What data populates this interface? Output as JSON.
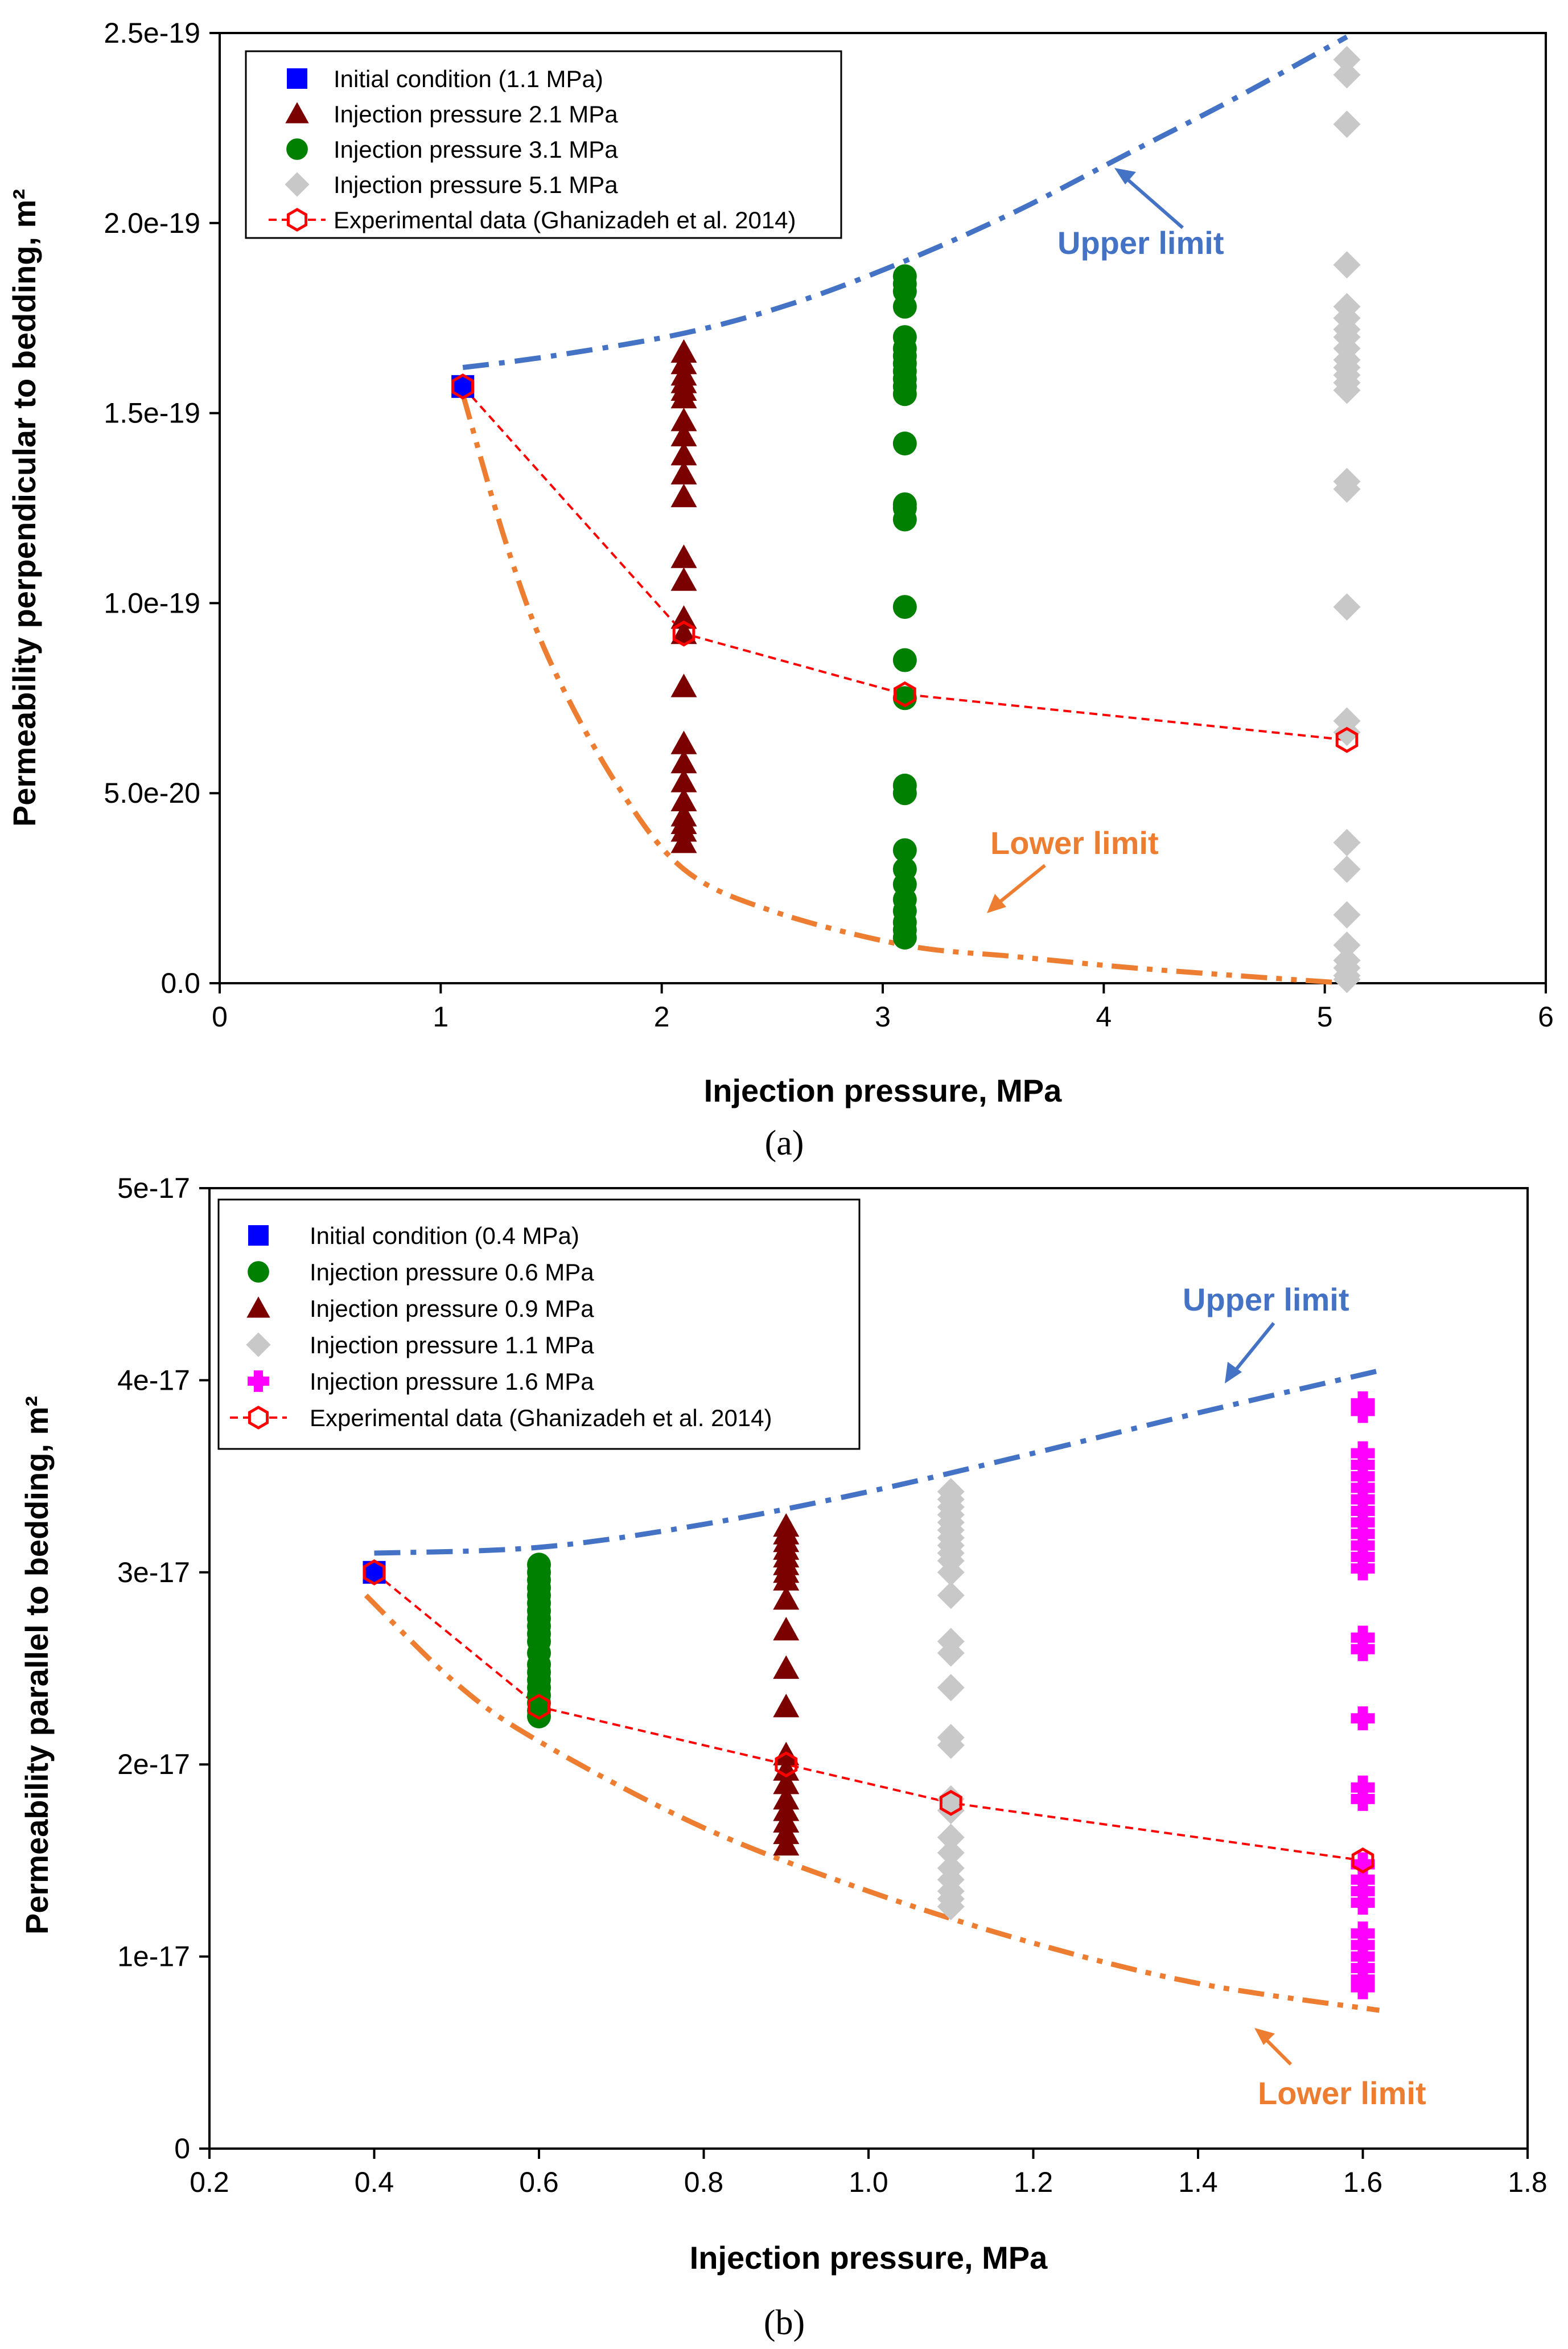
{
  "chart_data": [
    {
      "type": "scatter",
      "panel_label": "(a)",
      "xlabel": "Injection pressure, MPa",
      "ylabel": "Permeability perpendicular to bedding, m²",
      "xlim": [
        0,
        6
      ],
      "ylim": [
        0,
        2.5e-19
      ],
      "xticks": [
        0,
        1,
        2,
        3,
        4,
        5,
        6
      ],
      "xtick_labels": [
        "0",
        "1",
        "2",
        "3",
        "4",
        "5",
        "6"
      ],
      "yticks": [
        0,
        5e-20,
        1e-19,
        1.5e-19,
        2e-19,
        2.5e-19
      ],
      "ytick_labels": [
        "0.0",
        "5.0e-20",
        "1.0e-19",
        "1.5e-19",
        "2.0e-19",
        "2.5e-19"
      ],
      "grid": false,
      "legend_position": "top-left",
      "series": [
        {
          "name": "Initial condition (1.1 MPa)",
          "marker": "square",
          "color": "#0000ff",
          "x": [
            1.1
          ],
          "y": [
            1.57e-19
          ]
        },
        {
          "name": "Injection pressure 2.1 MPa",
          "marker": "triangle",
          "color": "#7b0000",
          "x": [
            2.1,
            2.1,
            2.1,
            2.1,
            2.1,
            2.1,
            2.1,
            2.1,
            2.1,
            2.1,
            2.1,
            2.1,
            2.1,
            2.1,
            2.1,
            2.1,
            2.1,
            2.1,
            2.1,
            2.1,
            2.1,
            2.1,
            2.1,
            2.1
          ],
          "y": [
            1.66e-19,
            1.63e-19,
            1.6e-19,
            1.58e-19,
            1.56e-19,
            1.54e-19,
            1.48e-19,
            1.44e-19,
            1.39e-19,
            1.34e-19,
            1.28e-19,
            1.12e-19,
            1.06e-19,
            9.6e-20,
            9.2e-20,
            7.8e-20,
            6.3e-20,
            5.8e-20,
            5.3e-20,
            4.8e-20,
            4.4e-20,
            4.2e-20,
            4e-20,
            3.7e-20
          ]
        },
        {
          "name": "Injection pressure 3.1 MPa",
          "marker": "circle",
          "color": "#008000",
          "x": [
            3.1,
            3.1,
            3.1,
            3.1,
            3.1,
            3.1,
            3.1,
            3.1,
            3.1,
            3.1,
            3.1,
            3.1,
            3.1,
            3.1,
            3.1,
            3.1,
            3.1,
            3.1,
            3.1,
            3.1,
            3.1,
            3.1,
            3.1,
            3.1,
            3.1,
            3.1,
            3.1,
            3.1,
            3.1
          ],
          "y": [
            1.86e-19,
            1.84e-19,
            1.82e-19,
            1.78e-19,
            1.7e-19,
            1.67e-19,
            1.65e-19,
            1.63e-19,
            1.61e-19,
            1.59e-19,
            1.57e-19,
            1.55e-19,
            1.42e-19,
            1.26e-19,
            1.25e-19,
            1.22e-19,
            9.9e-20,
            8.5e-20,
            7.5e-20,
            5.2e-20,
            5e-20,
            3.5e-20,
            3e-20,
            2.6e-20,
            2.2e-20,
            1.9e-20,
            1.6e-20,
            1.4e-20,
            1.2e-20
          ]
        },
        {
          "name": "Injection pressure 5.1 MPa",
          "marker": "diamond",
          "color": "#c8c8c8",
          "x": [
            5.1,
            5.1,
            5.1,
            5.1,
            5.1,
            5.1,
            5.1,
            5.1,
            5.1,
            5.1,
            5.1,
            5.1,
            5.1,
            5.1,
            5.1,
            5.1,
            5.1,
            5.1,
            5.1,
            5.1,
            5.1,
            5.1,
            5.1,
            5.1,
            5.1,
            5.1,
            5.1
          ],
          "y": [
            2.43e-19,
            2.39e-19,
            2.26e-19,
            1.89e-19,
            1.78e-19,
            1.75e-19,
            1.72e-19,
            1.7e-19,
            1.67e-19,
            1.64e-19,
            1.62e-19,
            1.6e-19,
            1.58e-19,
            1.56e-19,
            1.32e-19,
            1.3e-19,
            9.9e-20,
            6.9e-20,
            6.6e-20,
            3.7e-20,
            3e-20,
            1.8e-20,
            1e-20,
            6e-21,
            4e-21,
            2e-21,
            1e-21
          ]
        },
        {
          "name": "Experimental data (Ghanizadeh et al. 2014)",
          "marker": "hexagon-open",
          "line": "dashed",
          "color": "#ff0000",
          "x": [
            1.1,
            2.1,
            3.1,
            5.1
          ],
          "y": [
            1.57e-19,
            9.2e-20,
            7.6e-20,
            6.4e-20
          ]
        }
      ],
      "limit_curves": [
        {
          "label": "Upper limit",
          "color": "#4472c4",
          "x": [
            1.1,
            1.5,
            2.1,
            2.6,
            3.1,
            3.6,
            4.1,
            4.6,
            5.1
          ],
          "y": [
            1.62e-19,
            1.65e-19,
            1.71e-19,
            1.79e-19,
            1.9e-19,
            2.03e-19,
            2.18e-19,
            2.33e-19,
            2.49e-19
          ]
        },
        {
          "label": "Lower limit",
          "color": "#ed7d31",
          "x": [
            1.1,
            1.3,
            1.5,
            1.8,
            2.1,
            2.5,
            3.1,
            3.6,
            4.1,
            4.6,
            5.1
          ],
          "y": [
            1.55e-19,
            1.15e-19,
            8.4e-20,
            5.2e-20,
            3e-20,
            1.9e-20,
            1e-20,
            7e-21,
            4.2e-21,
            2e-21,
            0
          ]
        }
      ]
    },
    {
      "type": "scatter",
      "panel_label": "(b)",
      "xlabel": "Injection pressure, MPa",
      "ylabel": "Permeability parallel to bedding, m²",
      "xlim": [
        0.2,
        1.8
      ],
      "ylim": [
        0,
        5e-17
      ],
      "xticks": [
        0.2,
        0.4,
        0.6,
        0.8,
        1.0,
        1.2,
        1.4,
        1.6,
        1.8
      ],
      "xtick_labels": [
        "0.2",
        "0.4",
        "0.6",
        "0.8",
        "1.0",
        "1.2",
        "1.4",
        "1.6",
        "1.8"
      ],
      "yticks": [
        0,
        1e-17,
        2e-17,
        3e-17,
        4e-17,
        5e-17
      ],
      "ytick_labels": [
        "0",
        "1e-17",
        "2e-17",
        "3e-17",
        "4e-17",
        "5e-17"
      ],
      "grid": false,
      "legend_position": "top-left",
      "series": [
        {
          "name": "Initial condition (0.4 MPa)",
          "marker": "square",
          "color": "#0000ff",
          "x": [
            0.4
          ],
          "y": [
            3e-17
          ]
        },
        {
          "name": "Injection pressure 0.6 MPa",
          "marker": "circle",
          "color": "#008000",
          "x": [
            0.6,
            0.6,
            0.6,
            0.6,
            0.6,
            0.6,
            0.6,
            0.6,
            0.6,
            0.6,
            0.6,
            0.6,
            0.6,
            0.6,
            0.6,
            0.6,
            0.6,
            0.6,
            0.6,
            0.6
          ],
          "y": [
            3.04e-17,
            3e-17,
            2.96e-17,
            2.92e-17,
            2.88e-17,
            2.84e-17,
            2.8e-17,
            2.76e-17,
            2.72e-17,
            2.68e-17,
            2.64e-17,
            2.58e-17,
            2.52e-17,
            2.48e-17,
            2.44e-17,
            2.4e-17,
            2.36e-17,
            2.32e-17,
            2.28e-17,
            2.25e-17
          ]
        },
        {
          "name": "Injection pressure 0.9 MPa",
          "marker": "triangle",
          "color": "#7b0000",
          "x": [
            0.9,
            0.9,
            0.9,
            0.9,
            0.9,
            0.9,
            0.9,
            0.9,
            0.9,
            0.9,
            0.9,
            0.9,
            0.9,
            0.9,
            0.9,
            0.9,
            0.9,
            0.9,
            0.9,
            0.9
          ],
          "y": [
            3.24e-17,
            3.2e-17,
            3.16e-17,
            3.12e-17,
            3.08e-17,
            3.04e-17,
            3e-17,
            2.96e-17,
            2.86e-17,
            2.7e-17,
            2.5e-17,
            2.3e-17,
            2.05e-17,
            1.97e-17,
            1.9e-17,
            1.82e-17,
            1.76e-17,
            1.7e-17,
            1.64e-17,
            1.58e-17
          ]
        },
        {
          "name": "Injection pressure 1.1 MPa",
          "marker": "diamond",
          "color": "#c8c8c8",
          "x": [
            1.1,
            1.1,
            1.1,
            1.1,
            1.1,
            1.1,
            1.1,
            1.1,
            1.1,
            1.1,
            1.1,
            1.1,
            1.1,
            1.1,
            1.1,
            1.1,
            1.1,
            1.1,
            1.1,
            1.1,
            1.1,
            1.1,
            1.1,
            1.1,
            1.1,
            1.1
          ],
          "y": [
            3.42e-17,
            3.38e-17,
            3.34e-17,
            3.3e-17,
            3.26e-17,
            3.22e-17,
            3.18e-17,
            3.14e-17,
            3.1e-17,
            3.06e-17,
            3e-17,
            2.88e-17,
            2.64e-17,
            2.58e-17,
            2.4e-17,
            2.14e-17,
            2.1e-17,
            1.82e-17,
            1.76e-17,
            1.62e-17,
            1.54e-17,
            1.46e-17,
            1.4e-17,
            1.34e-17,
            1.3e-17,
            1.26e-17
          ]
        },
        {
          "name": "Injection pressure 1.6 MPa",
          "marker": "plus",
          "color": "#ff00ff",
          "x": [
            1.6,
            1.6,
            1.6,
            1.6,
            1.6,
            1.6,
            1.6,
            1.6,
            1.6,
            1.6,
            1.6,
            1.6,
            1.6,
            1.6,
            1.6,
            1.6,
            1.6,
            1.6,
            1.6,
            1.6,
            1.6,
            1.6,
            1.6,
            1.6,
            1.6,
            1.6,
            1.6,
            1.6
          ],
          "y": [
            3.88e-17,
            3.84e-17,
            3.62e-17,
            3.56e-17,
            3.5e-17,
            3.44e-17,
            3.38e-17,
            3.32e-17,
            3.26e-17,
            3.2e-17,
            3.14e-17,
            3.08e-17,
            3.02e-17,
            2.66e-17,
            2.6e-17,
            2.24e-17,
            1.88e-17,
            1.82e-17,
            1.48e-17,
            1.4e-17,
            1.34e-17,
            1.28e-17,
            1.12e-17,
            1.06e-17,
            1e-17,
            9.4e-18,
            8.8e-18,
            8.4e-18
          ]
        },
        {
          "name": "Experimental data (Ghanizadeh et al. 2014)",
          "marker": "hexagon-open",
          "line": "dashed",
          "color": "#ff0000",
          "x": [
            0.4,
            0.6,
            0.9,
            1.1,
            1.6
          ],
          "y": [
            3e-17,
            2.3e-17,
            2e-17,
            1.8e-17,
            1.5e-17
          ]
        }
      ],
      "limit_curves": [
        {
          "label": "Upper limit",
          "color": "#4472c4",
          "x": [
            0.4,
            0.6,
            0.8,
            1.0,
            1.2,
            1.4,
            1.62
          ],
          "y": [
            3.1e-17,
            3.13e-17,
            3.25e-17,
            3.42e-17,
            3.62e-17,
            3.83e-17,
            4.05e-17
          ]
        },
        {
          "label": "Lower limit",
          "color": "#ed7d31",
          "x": [
            0.39,
            0.5,
            0.6,
            0.8,
            1.0,
            1.2,
            1.4,
            1.62
          ],
          "y": [
            2.88e-17,
            2.42e-17,
            2.12e-17,
            1.67e-17,
            1.34e-17,
            1.07e-17,
            8.6e-18,
            7.2e-18
          ]
        }
      ]
    }
  ]
}
